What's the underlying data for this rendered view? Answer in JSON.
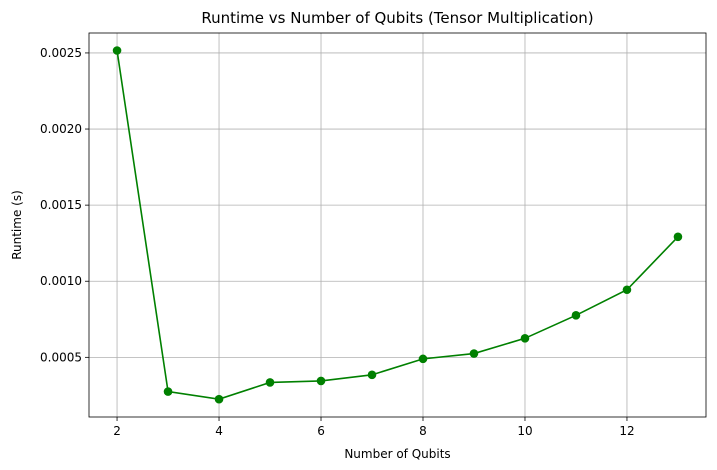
{
  "chart_data": {
    "type": "line",
    "title": "Runtime vs Number of Qubits (Tensor Multiplication)",
    "xlabel": "Number of Qubits",
    "ylabel": "Runtime (s)",
    "xlim": [
      1.45,
      13.55
    ],
    "ylim": [
      0.000108,
      0.002631
    ],
    "x_ticks": [
      2,
      4,
      6,
      8,
      10,
      12
    ],
    "x_tick_labels": [
      "2",
      "4",
      "6",
      "8",
      "10",
      "12"
    ],
    "y_ticks": [
      0.0005,
      0.001,
      0.0015,
      0.002,
      0.0025
    ],
    "y_tick_labels": [
      "0.0005",
      "0.0010",
      "0.0015",
      "0.0020",
      "0.0025"
    ],
    "grid": true,
    "series": [
      {
        "color": "#008000",
        "marker": "circle",
        "x": [
          2,
          3,
          4,
          5,
          6,
          7,
          8,
          9,
          10,
          11,
          12,
          13
        ],
        "y": [
          0.002516,
          0.000275,
          0.000225,
          0.000335,
          0.000345,
          0.000385,
          0.00049,
          0.000525,
          0.000625,
          0.000776,
          0.000944,
          0.001292
        ]
      }
    ]
  }
}
